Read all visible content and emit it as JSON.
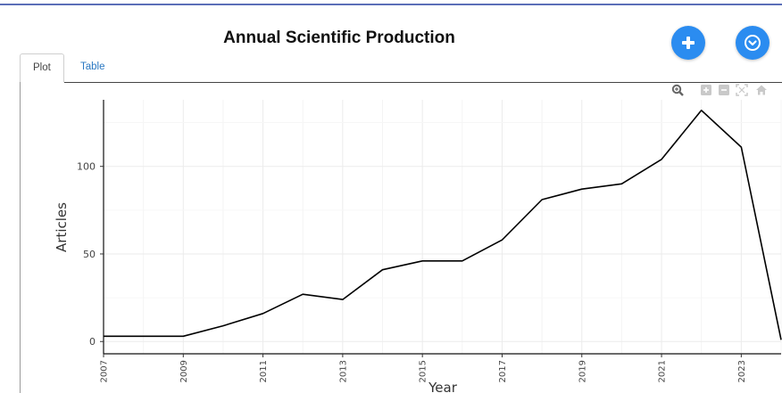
{
  "page": {
    "title": "Annual Scientific Production",
    "tabs": [
      {
        "label": "Plot",
        "active": true
      },
      {
        "label": "Table",
        "active": false
      }
    ],
    "buttons": {
      "add_icon": "plus-icon",
      "download_icon": "download-icon"
    },
    "modebar": [
      "zoom-icon",
      "zoom-in-icon",
      "zoom-out-icon",
      "autoscale-icon",
      "reset-axes-icon"
    ],
    "colors": {
      "accent": "#2b8cf0",
      "line": "#000000",
      "tab_link": "#2a78c2"
    }
  },
  "chart_data": {
    "type": "line",
    "xlabel": "Year",
    "ylabel": "Articles",
    "x": [
      2007,
      2008,
      2009,
      2010,
      2011,
      2012,
      2013,
      2014,
      2015,
      2016,
      2017,
      2018,
      2019,
      2020,
      2021,
      2022,
      2023,
      2024
    ],
    "series": [
      {
        "values": [
          3,
          3,
          3,
          9,
          16,
          27,
          24,
          41,
          46,
          46,
          58,
          81,
          87,
          90,
          104,
          132,
          111,
          1
        ]
      }
    ],
    "xticks": [
      "2007",
      "2009",
      "2011",
      "2013",
      "2015",
      "2017",
      "2019",
      "2021",
      "2023"
    ],
    "yticks": [
      "0",
      "50",
      "100"
    ],
    "xlim": [
      2007,
      2024
    ],
    "ylim": [
      -7,
      138
    ],
    "grid": true
  }
}
